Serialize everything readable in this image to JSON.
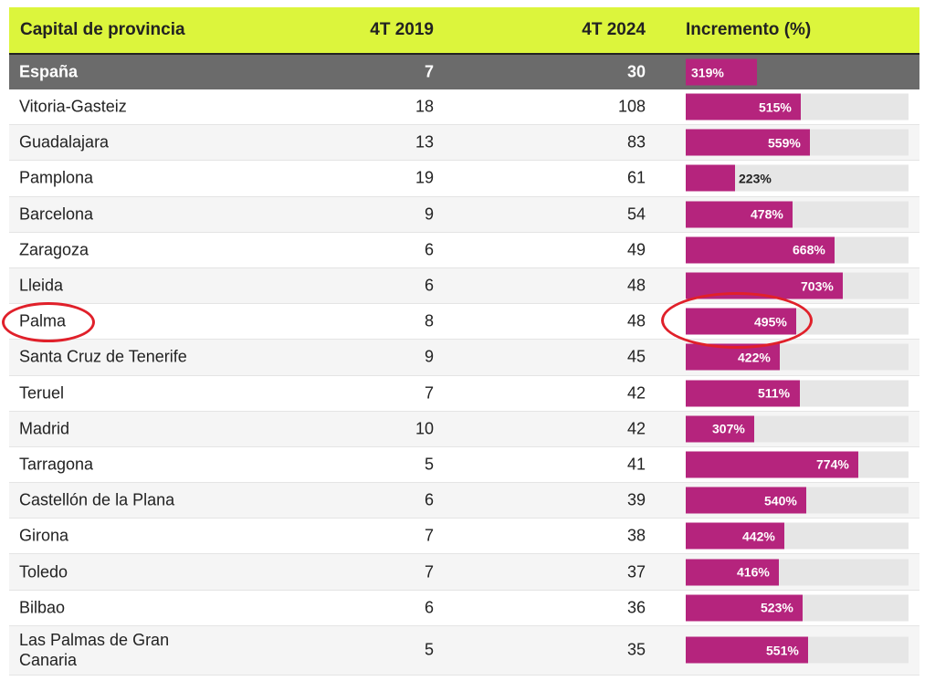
{
  "table": {
    "headers": {
      "name": "Capital de provincia",
      "y2019": "4T 2019",
      "y2024": "4T 2024",
      "increment": "Incremento (%)"
    },
    "bar_color": "#b5247d",
    "header_color": "#dcf53c",
    "total_row_color": "#6b6b6b",
    "highlight_color": "#e0202a",
    "bar_scale_max": 1000
  },
  "chart_data": {
    "type": "table",
    "columns": [
      "Capital de provincia",
      "4T 2019",
      "4T 2024",
      "Incremento (%)"
    ],
    "rows": [
      {
        "name": "España",
        "y2019": "7",
        "y2024": "30",
        "inc": 319,
        "inc_label": "319%",
        "total": true
      },
      {
        "name": "Vitoria-Gasteiz",
        "y2019": "18",
        "y2024": "108",
        "inc": 515,
        "inc_label": "515%"
      },
      {
        "name": "Guadalajara",
        "y2019": "13",
        "y2024": "83",
        "inc": 559,
        "inc_label": "559%"
      },
      {
        "name": "Pamplona",
        "y2019": "19",
        "y2024": "61",
        "inc": 223,
        "inc_label": "223%"
      },
      {
        "name": "Barcelona",
        "y2019": "9",
        "y2024": "54",
        "inc": 478,
        "inc_label": "478%"
      },
      {
        "name": "Zaragoza",
        "y2019": "6",
        "y2024": "49",
        "inc": 668,
        "inc_label": "668%"
      },
      {
        "name": "Lleida",
        "y2019": "6",
        "y2024": "48",
        "inc": 703,
        "inc_label": "703%"
      },
      {
        "name": "Palma",
        "y2019": "8",
        "y2024": "48",
        "inc": 495,
        "inc_label": "495%",
        "highlighted": true
      },
      {
        "name": "Santa Cruz de Tenerife",
        "y2019": "9",
        "y2024": "45",
        "inc": 422,
        "inc_label": "422%"
      },
      {
        "name": "Teruel",
        "y2019": "7",
        "y2024": "42",
        "inc": 511,
        "inc_label": "511%"
      },
      {
        "name": "Madrid",
        "y2019": "10",
        "y2024": "42",
        "inc": 307,
        "inc_label": "307%"
      },
      {
        "name": "Tarragona",
        "y2019": "5",
        "y2024": "41",
        "inc": 774,
        "inc_label": "774%"
      },
      {
        "name": "Castellón de la Plana",
        "y2019": "6",
        "y2024": "39",
        "inc": 540,
        "inc_label": "540%"
      },
      {
        "name": "Girona",
        "y2019": "7",
        "y2024": "38",
        "inc": 442,
        "inc_label": "442%"
      },
      {
        "name": "Toledo",
        "y2019": "7",
        "y2024": "37",
        "inc": 416,
        "inc_label": "416%"
      },
      {
        "name": "Bilbao",
        "y2019": "6",
        "y2024": "36",
        "inc": 523,
        "inc_label": "523%"
      },
      {
        "name": "Las Palmas de Gran Canaria",
        "y2019": "5",
        "y2024": "35",
        "inc": 551,
        "inc_label": "551%"
      }
    ]
  }
}
